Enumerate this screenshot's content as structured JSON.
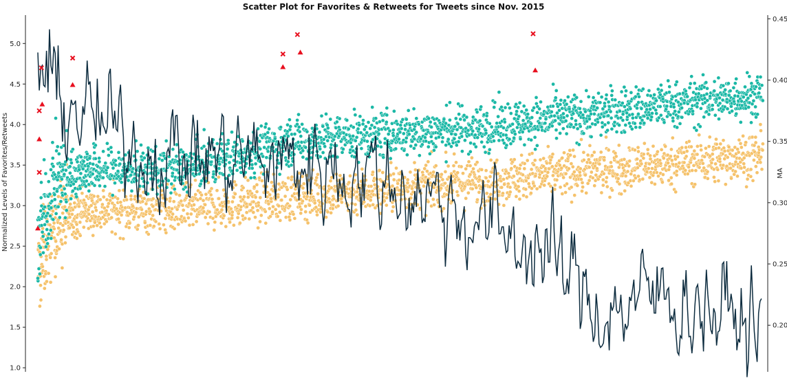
{
  "chart_data": {
    "type": "scatter",
    "title": "Scatter Plot for Favorites & Retweets for Tweets since Nov. 2015",
    "ylabel": "Normalized Levels of Favorites/Retweets",
    "y2label": "MA",
    "ylim": [
      0.95,
      5.35
    ],
    "y2lim": [
      0.162,
      0.453
    ],
    "yticks": [
      "1.0",
      "1.5",
      "2.0",
      "2.5",
      "3.0",
      "3.5",
      "4.0",
      "4.5",
      "5.0"
    ],
    "y2ticks": [
      "0.20",
      "0.25",
      "0.30",
      "0.35",
      "0.40",
      "0.45"
    ],
    "grid": false,
    "n_points": 1000,
    "colors": {
      "favorites": "#f5c26b",
      "retweets": "#1bb8a6",
      "moving_average": "#0d2c3f",
      "outliers": "#e8101f"
    },
    "series": [
      {
        "kind": "scatter",
        "trend": [
          [
            0,
            2.15
          ],
          [
            20,
            2.75
          ],
          [
            60,
            2.95
          ],
          [
            200,
            2.95
          ],
          [
            350,
            3.1
          ],
          [
            600,
            3.3
          ],
          [
            1000,
            3.62
          ]
        ]
      },
      {
        "kind": "scatter",
        "trend": [
          [
            0,
            2.55
          ],
          [
            20,
            3.25
          ],
          [
            60,
            3.45
          ],
          [
            200,
            3.45
          ],
          [
            350,
            3.8
          ],
          [
            600,
            3.95
          ],
          [
            1000,
            4.38
          ]
        ]
      },
      {
        "kind": "line",
        "axis": "right",
        "trend": [
          [
            0,
            0.41
          ],
          [
            30,
            0.385
          ],
          [
            150,
            0.34
          ],
          [
            400,
            0.33
          ],
          [
            520,
            0.31
          ],
          [
            700,
            0.26
          ],
          [
            780,
            0.21
          ],
          [
            860,
            0.225
          ],
          [
            1000,
            0.2
          ]
        ]
      },
      {
        "kind": "markers",
        "points": [
          {
            "x": 2,
            "y": 4.17,
            "m": "x"
          },
          {
            "x": 5,
            "y": 4.7,
            "m": "x"
          },
          {
            "x": 2,
            "y": 3.41,
            "m": "x"
          },
          {
            "x": 48,
            "y": 4.82,
            "m": "x"
          },
          {
            "x": 338,
            "y": 4.87,
            "m": "x"
          },
          {
            "x": 358,
            "y": 5.11,
            "m": "x"
          },
          {
            "x": 683,
            "y": 5.12,
            "m": "x"
          },
          {
            "x": 2,
            "y": 3.82,
            "m": "tri"
          },
          {
            "x": 0,
            "y": 2.72,
            "m": "tri"
          },
          {
            "x": 6,
            "y": 4.25,
            "m": "tri"
          },
          {
            "x": 48,
            "y": 4.49,
            "m": "tri"
          },
          {
            "x": 338,
            "y": 4.71,
            "m": "tri"
          },
          {
            "x": 362,
            "y": 4.89,
            "m": "tri"
          },
          {
            "x": 686,
            "y": 4.67,
            "m": "tri"
          }
        ]
      }
    ]
  }
}
